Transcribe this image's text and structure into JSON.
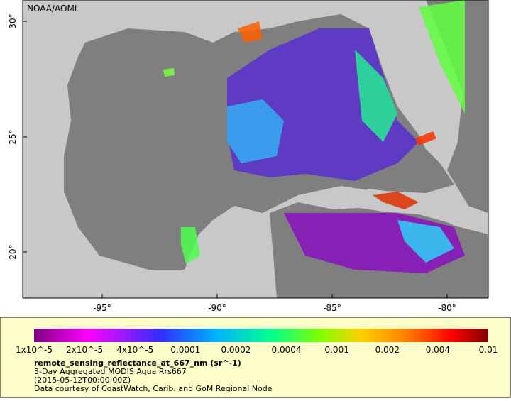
{
  "map": {
    "credit": "NOAA/AOML",
    "lat_labels": [
      "30°",
      "25°",
      "20°"
    ],
    "lon_labels": [
      "-95°",
      "-90°",
      "-85°",
      "-80°"
    ]
  },
  "legend": {
    "tick_labels": [
      "1x10^-5",
      "2x10^-5",
      "4x10^-5",
      "0.0001",
      "0.0002",
      "0.0004",
      "0.001",
      "0.002",
      "0.004",
      "0.01"
    ],
    "variable": "remote_sensing_reflectance_at_667_nm (sr^-1)",
    "lines": [
      "3-Day Aggregated MODIS Aqua Rrs667",
      "(2015-05-12T00:00:00Z)",
      "Data courtesy of CoastWatch, Carib. and GoM Regional Node"
    ]
  }
}
